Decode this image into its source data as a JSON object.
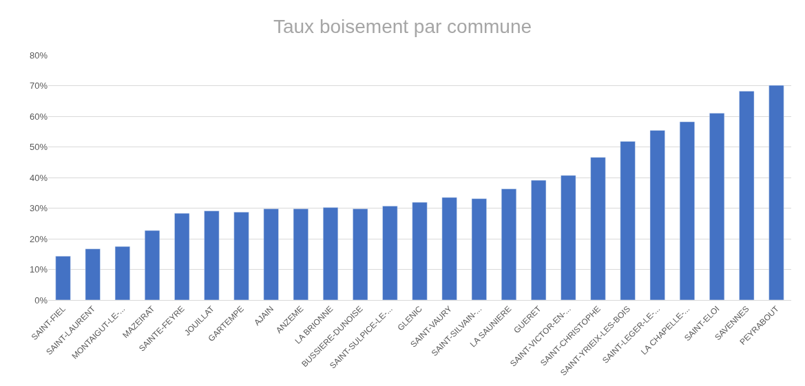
{
  "chart_data": {
    "type": "bar",
    "title": "Taux boisement par commune",
    "categories": [
      "SAINT-FIEL",
      "SAINT-LAURENT",
      "MONTAIGUT-LE-...",
      "MAZEIRAT",
      "SAINTE-FEYRE",
      "JOUILLAT",
      "GARTEMPE",
      "AJAIN",
      "ANZEME",
      "LA BRIONNE",
      "BUSSIERE-DUNOISE",
      "SAINT-SULPICE-LE-...",
      "GLENIC",
      "SAINT-VAURY",
      "SAINT-SILVAIN-...",
      "LA SAUNIERE",
      "GUERET",
      "SAINT-VICTOR-EN-...",
      "SAINT-CHRISTOPHE",
      "SAINT-YRIEIX-LES-BOIS",
      "SAINT-LEGER-LE-...",
      "LA CHAPELLE-...",
      "SAINT-ELOI",
      "SAVENNES",
      "PEYRABOUT"
    ],
    "values": [
      14.3,
      16.7,
      17.5,
      22.7,
      28.3,
      29.1,
      28.7,
      29.8,
      29.8,
      30.2,
      29.8,
      30.7,
      31.9,
      33.5,
      33.1,
      36.3,
      39.1,
      40.7,
      46.6,
      51.8,
      55.4,
      58.2,
      61.0,
      68.2,
      70.1
    ],
    "color": "#4472c4",
    "ylim": [
      0,
      80
    ],
    "yticks": [
      {
        "value": 0,
        "label": "0%"
      },
      {
        "value": 10,
        "label": "10%"
      },
      {
        "value": 20,
        "label": "20%"
      },
      {
        "value": 30,
        "label": "30%"
      },
      {
        "value": 40,
        "label": "40%"
      },
      {
        "value": 50,
        "label": "50%"
      },
      {
        "value": 60,
        "label": "60%"
      },
      {
        "value": 70,
        "label": "70%"
      },
      {
        "value": 80,
        "label": "80%"
      }
    ],
    "grid": "y",
    "legend": false
  }
}
